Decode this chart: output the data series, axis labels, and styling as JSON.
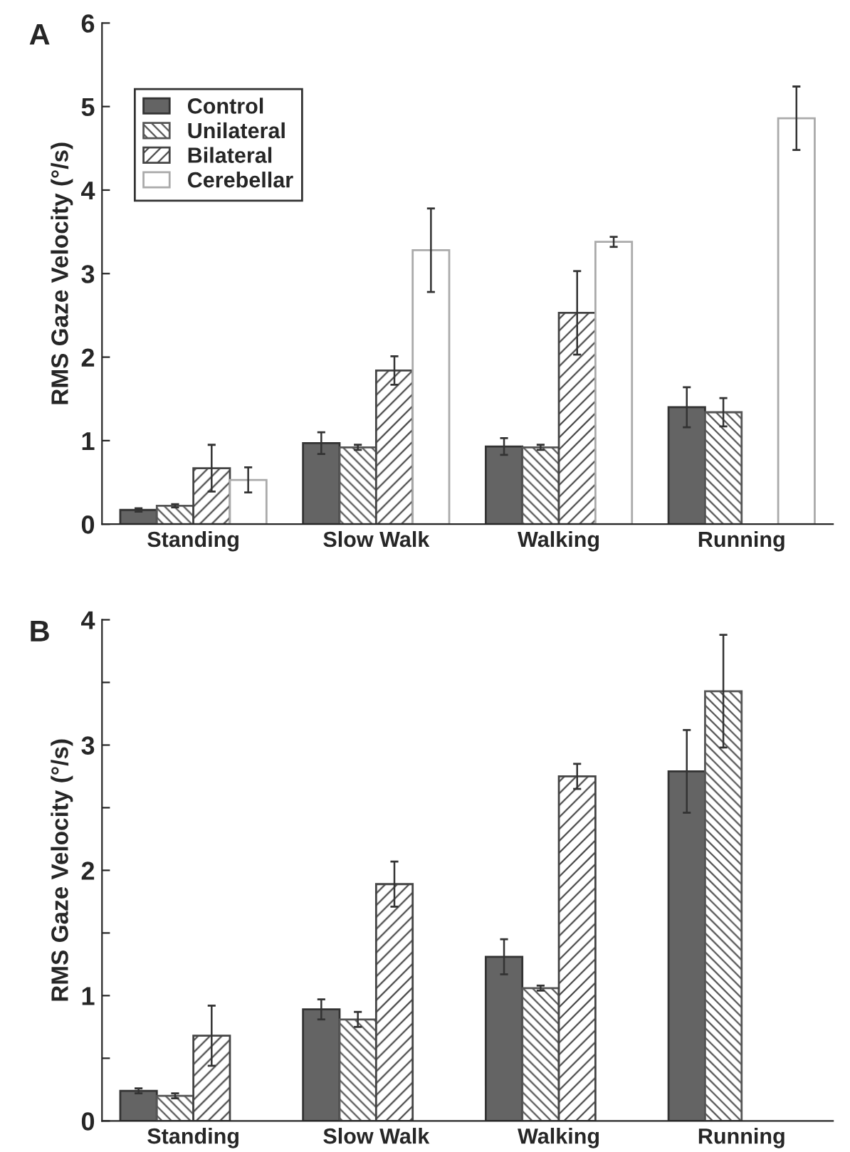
{
  "chart_data": [
    {
      "type": "bar",
      "title": "A",
      "ylabel": "RMS Gaze Velocity (°/s)",
      "categories": [
        "Standing",
        "Slow Walk",
        "Walking",
        "Running"
      ],
      "ylim": [
        0,
        6
      ],
      "yticks": [
        0,
        1,
        2,
        3,
        4,
        5,
        6
      ],
      "grid": false,
      "legend": "top left",
      "series": [
        {
          "name": "Control",
          "color": "#646464",
          "values": [
            0.17,
            0.97,
            0.93,
            1.4
          ],
          "errors": [
            0.02,
            0.13,
            0.1,
            0.24
          ]
        },
        {
          "name": "Unilateral",
          "color": "#555555",
          "values": [
            0.22,
            0.92,
            0.92,
            1.34
          ],
          "errors": [
            0.02,
            0.03,
            0.03,
            0.17
          ]
        },
        {
          "name": "Bilateral",
          "color": "#444444",
          "values": [
            0.67,
            1.84,
            2.53,
            null
          ],
          "errors": [
            0.28,
            0.17,
            0.5,
            null
          ]
        },
        {
          "name": "Cerebellar",
          "color": "#ffffff",
          "values": [
            0.53,
            3.28,
            3.38,
            4.86
          ],
          "errors": [
            0.15,
            0.5,
            0.06,
            0.38
          ]
        }
      ]
    },
    {
      "type": "bar",
      "title": "B",
      "ylabel": "RMS Gaze Velocity (°/s)",
      "categories": [
        "Standing",
        "Slow Walk",
        "Walking",
        "Running"
      ],
      "ylim": [
        0,
        4
      ],
      "yticks": [
        0,
        {
          "value": 0.5,
          "label": null
        },
        1,
        {
          "value": 1.5,
          "label": null
        },
        2,
        {
          "value": 2.5,
          "label": null
        },
        3,
        {
          "value": 3.5,
          "label": null
        },
        4
      ],
      "grid": false,
      "series": [
        {
          "color": "#646464",
          "values": [
            0.24,
            0.89,
            1.31,
            2.79
          ],
          "errors": [
            0.02,
            0.08,
            0.14,
            0.33
          ]
        },
        {
          "color": "#555555",
          "values": [
            0.2,
            0.81,
            1.06,
            3.43
          ],
          "errors": [
            0.02,
            0.06,
            0.02,
            0.45
          ]
        },
        {
          "color": "#444444",
          "values": [
            0.68,
            1.89,
            2.75,
            null
          ],
          "errors": [
            0.24,
            0.18,
            0.1,
            null
          ]
        }
      ]
    }
  ]
}
